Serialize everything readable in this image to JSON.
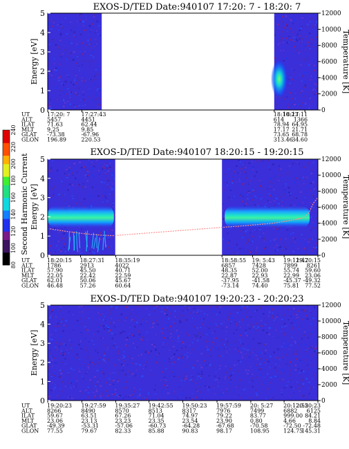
{
  "chart_data": [
    {
      "type": "heatmap",
      "title": "EXOS-D/TED   Date:940107  17:20: 7 - 18:20: 7",
      "ylabel": "Energy [eV]",
      "ylim": [
        0,
        5
      ],
      "yticks": [
        "0",
        "1",
        "2",
        "3",
        "4",
        "5"
      ],
      "ylabel_right": "Temperature [K]",
      "ylim_right": [
        0,
        12000
      ],
      "yticks_right": [
        "0",
        "2000",
        "4000",
        "6000",
        "8000",
        "10000",
        "12000"
      ],
      "time_range_min": [
        0,
        60
      ],
      "data_segments_min": [
        [
          0,
          12.0
        ],
        [
          50.3,
          60
        ]
      ],
      "bright_feature": {
        "t_min": [
          50.3,
          52.5
        ],
        "energy_ev": [
          0.6,
          2.6
        ]
      },
      "table": {
        "row_labels": [
          "UT",
          "ALT",
          "ILAT",
          "MLT",
          "GLAT",
          "GLON"
        ],
        "columns": [
          {
            "t": 0,
            "values": [
              "17:20: 7",
              "5457",
              "71.63",
              "9.25",
              "-73.38",
              "196.89"
            ]
          },
          {
            "t": 7.6,
            "values": [
              "17:27:43",
              "4451",
              "62.44",
              "9.85",
              "-67.96",
              "220.53"
            ]
          },
          {
            "t": 50.3,
            "values": [
              "18:10:23",
              "614",
              "78.94",
              "17.17",
              "73.65",
              "313.46"
            ]
          },
          {
            "t": 57.1,
            "values": [
              "18:17:11",
              "1366",
              "64.95",
              "21.71",
              "68.78",
              "34.60"
            ]
          }
        ]
      }
    },
    {
      "type": "heatmap",
      "title": "EXOS-D/TED   Date:940107  18:20:15 - 19:20:15",
      "ylabel": "Energy [eV]",
      "ylim": [
        0,
        5
      ],
      "yticks": [
        "0",
        "1",
        "2",
        "3",
        "4",
        "5"
      ],
      "ylabel_right": "Temperature [K]",
      "ylim_right": [
        0,
        12000
      ],
      "yticks_right": [
        "0",
        "2000",
        "4000",
        "6000",
        "8000",
        "10000",
        "12000"
      ],
      "colorbar": {
        "label": "Second Harmonic Current",
        "ticks": [
          "80",
          "100",
          "120",
          "140",
          "160",
          "180",
          "200",
          "220",
          "240"
        ],
        "range": [
          80,
          240
        ]
      },
      "time_range_min": [
        0,
        60
      ],
      "data_segments_min": [
        [
          0,
          15.0
        ],
        [
          38.7,
          60
        ]
      ],
      "band_center_ev": 2.0,
      "temperature_trace_k": [
        [
          0.5,
          3300
        ],
        [
          4,
          3000
        ],
        [
          8,
          2700
        ],
        [
          12,
          2500
        ],
        [
          14.5,
          2450
        ],
        [
          39,
          3500
        ],
        [
          44,
          3700
        ],
        [
          50,
          4000
        ],
        [
          54,
          4350
        ],
        [
          57,
          4700
        ],
        [
          58,
          5300
        ],
        [
          59,
          6500
        ],
        [
          60,
          7200
        ]
      ],
      "table": {
        "row_labels": [
          "UT",
          "ALT",
          "ILAT",
          "MLT",
          "GLAT",
          "GLON"
        ],
        "columns": [
          {
            "t": 0,
            "values": [
              "18:20:15",
              "1786",
              "57.90",
              "22.05",
              "62.01",
              "46.48"
            ]
          },
          {
            "t": 7.3,
            "values": [
              "18:27:31",
              "2913",
              "45.50",
              "22.42",
              "50.06",
              "57.26"
            ]
          },
          {
            "t": 15.1,
            "values": [
              "18:35:19",
              "4022",
              "40.71",
              "22.59",
              "45.67",
              "60.64"
            ]
          },
          {
            "t": 38.7,
            "values": [
              "18:58:55",
              "6857",
              "48.35",
              "22.87",
              "-37.95",
              "-73.14"
            ]
          },
          {
            "t": 45.5,
            "values": [
              "19: 5:43",
              "7428",
              "52.00",
              "22.93",
              "-41.58",
              "74.40"
            ]
          },
          {
            "t": 52.5,
            "values": [
              "19:12:47",
              "7899",
              "55.74",
              "22.99",
              "-45.37",
              "75.81"
            ]
          },
          {
            "t": 60,
            "values": [
              "19:20:15",
              "8261",
              "59.60",
              "23.06",
              "-49.32",
              "77.52"
            ]
          }
        ]
      }
    },
    {
      "type": "heatmap",
      "title": "EXOS-D/TED   Date:940107  19:20:23 - 20:20:23",
      "ylabel": "Energy [eV]",
      "ylim": [
        0,
        5
      ],
      "yticks": [
        "0",
        "1",
        "2",
        "3",
        "4",
        "5"
      ],
      "ylabel_right": "Temperature [K]",
      "ylim_right": [
        0,
        12000
      ],
      "yticks_right": [
        "0",
        "2000",
        "4000",
        "6000",
        "8000",
        "10000",
        "12000"
      ],
      "time_range_min": [
        0,
        60
      ],
      "data_segments_min": [
        [
          0,
          60
        ]
      ],
      "table": {
        "row_labels": [
          "UT",
          "ALT",
          "ILAT",
          "MLT",
          "GLAT",
          "GLON"
        ],
        "columns": [
          {
            "t": 0,
            "values": [
              "19:20:23",
              "8266",
              "59.67",
              "23.06",
              "-49.39",
              "77.55"
            ]
          },
          {
            "t": 7.6,
            "values": [
              "19:27:59",
              "8490",
              "63.51",
              "23.13",
              "-53.31",
              "79.67"
            ]
          },
          {
            "t": 15.1,
            "values": [
              "19:35:27",
              "8570",
              "67.26",
              "23.23",
              "-57.06",
              "82.33"
            ]
          },
          {
            "t": 22.5,
            "values": [
              "19:42:55",
              "8513",
              "71.04",
              "23.35",
              "-60.73",
              "85.88"
            ]
          },
          {
            "t": 30,
            "values": [
              "19:50:23",
              "8317",
              "74.97",
              "23.54",
              "-64.28",
              "90.83"
            ]
          },
          {
            "t": 37.6,
            "values": [
              "19:57:59",
              "7976",
              "79.22",
              "23.90",
              "-67.68",
              "98.17"
            ]
          },
          {
            "t": 45.1,
            "values": [
              "20: 5:27",
              "7499",
              "83.77",
              "0.80",
              "-70.58",
              "108.95"
            ]
          },
          {
            "t": 52.5,
            "values": [
              "20:12:55",
              "6882",
              "999.00",
              "4.66",
              "-72.50",
              "124.75"
            ]
          },
          {
            "t": 60,
            "values": [
              "20:20:23",
              "6125",
              "84.21",
              "8.84",
              "-72.48",
              "145.31"
            ]
          }
        ]
      }
    }
  ]
}
